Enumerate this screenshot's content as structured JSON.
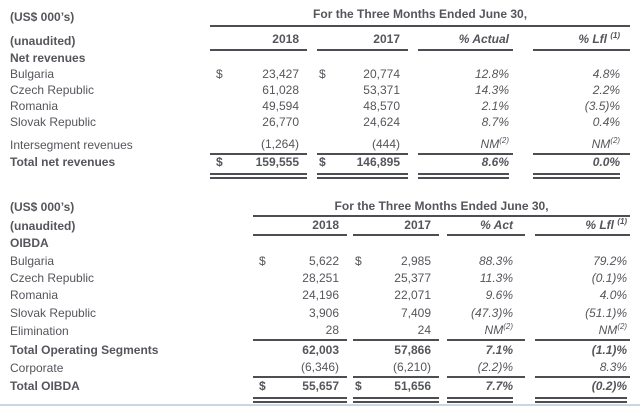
{
  "colors": {
    "text": "#54565b",
    "rule_lines": "#4c4e53",
    "bottom_edge": "#ccd7e0"
  },
  "tables": [
    {
      "units_label": "(US$ 000’s)",
      "unaudited_label": "(unaudited)",
      "period_header": "For the Three Months Ended June 30,",
      "col_2018": "2018",
      "col_2017": "2017",
      "col_pct_actual": "% Actual",
      "col_pct_lfl": "% Lfl",
      "lfl_sup": "(1)",
      "nm_label": "NM",
      "nm_sup": "(2)",
      "currency_symbol": "$",
      "section_label": "Net revenues",
      "rows": [
        {
          "label": "Bulgaria",
          "dollar": true,
          "v2018": "23,427",
          "v2017": "20,774",
          "pct_actual": "12.8%",
          "pct_lfl": "4.8%"
        },
        {
          "label": "Czech Republic",
          "v2018": "61,028",
          "v2017": "53,371",
          "pct_actual": "14.3%",
          "pct_lfl": "2.2%"
        },
        {
          "label": "Romania",
          "v2018": "49,594",
          "v2017": "48,570",
          "pct_actual": "2.1%",
          "pct_lfl": "(3.5)%"
        },
        {
          "label": "Slovak Republic",
          "v2018": "26,770",
          "v2017": "24,624",
          "pct_actual": "8.7%",
          "pct_lfl": "0.4%"
        },
        {
          "label": "Intersegment revenues",
          "v2018": "(1,264)",
          "v2017": "(444)",
          "pct_actual": "NM",
          "pct_lfl": "NM",
          "gap_top": true,
          "rule_below": true
        },
        {
          "label": "Total net revenues",
          "dollar": true,
          "bold": true,
          "v2018": "159,555",
          "v2017": "146,895",
          "pct_actual": "8.6%",
          "pct_lfl": "0.0%",
          "double_below": true
        }
      ]
    },
    {
      "units_label": "(US$ 000’s)",
      "unaudited_label": "(unaudited)",
      "period_header": "For the Three Months Ended June 30,",
      "col_2018": "2018",
      "col_2017": "2017",
      "col_pct_actual": "% Act",
      "col_pct_lfl": "% Lfl",
      "lfl_sup": "(1)",
      "nm_label": "NM",
      "nm_sup": "(2)",
      "currency_symbol": "$",
      "section_label": "OIBDA",
      "rows": [
        {
          "label": "Bulgaria",
          "dollar": true,
          "v2018": "5,622",
          "v2017": "2,985",
          "pct_actual": "88.3%",
          "pct_lfl": "79.2%"
        },
        {
          "label": "Czech Republic",
          "v2018": "28,251",
          "v2017": "25,377",
          "pct_actual": "11.3%",
          "pct_lfl": "(0.1)%"
        },
        {
          "label": "Romania",
          "v2018": "24,196",
          "v2017": "22,071",
          "pct_actual": "9.6%",
          "pct_lfl": "4.0%"
        },
        {
          "label": "Slovak Republic",
          "v2018": "3,906",
          "v2017": "7,409",
          "pct_actual": "(47.3)%",
          "pct_lfl": "(51.1)%"
        },
        {
          "label": "Elimination",
          "v2018": "28",
          "v2017": "24",
          "pct_actual": "NM",
          "pct_lfl": "NM",
          "rule_below": true
        },
        {
          "label": "Total Operating Segments",
          "bold": true,
          "v2018": "62,003",
          "v2017": "57,866",
          "pct_actual": "7.1%",
          "pct_lfl": "(1.1)%"
        },
        {
          "label": "Corporate",
          "v2018": "(6,346)",
          "v2017": "(6,210)",
          "pct_actual": "(2.2)%",
          "pct_lfl": "8.3%",
          "rule_below": true
        },
        {
          "label": "Total OIBDA",
          "dollar": true,
          "bold": true,
          "v2018": "55,657",
          "v2017": "51,656",
          "pct_actual": "7.7%",
          "pct_lfl": "(0.2)%",
          "double_below": true
        }
      ]
    }
  ]
}
